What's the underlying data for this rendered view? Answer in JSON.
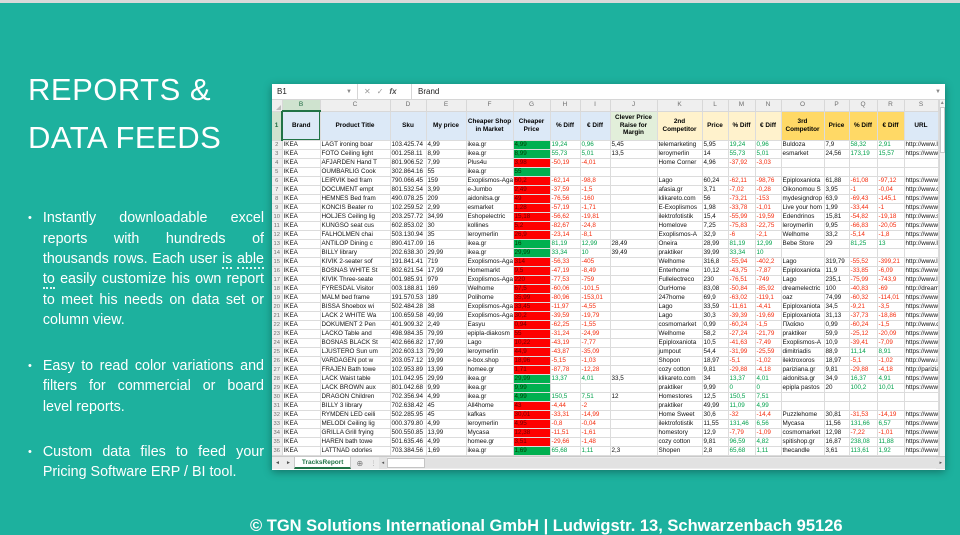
{
  "slide": {
    "title_line1": "REPORTS &",
    "title_line2": "DATA FEEDS",
    "bullets": [
      {
        "segments": [
          {
            "t": "Instantly downloadable excel reports with hundreds of thousands rows. Each user "
          },
          {
            "t": "is",
            "u": true
          },
          {
            "t": " "
          },
          {
            "t": "able",
            "u": true
          },
          {
            "t": " "
          },
          {
            "t": "to",
            "u": true
          },
          {
            "t": " easily customize his own report to meet his needs on data set or column view."
          }
        ]
      },
      {
        "segments": [
          {
            "t": "Easy to read color variations and filters for commercial or board level reports."
          }
        ]
      },
      {
        "segments": [
          {
            "t": "Custom data files to feed your Pricing Software ERP / BI tool."
          }
        ]
      }
    ],
    "footer": "© TGN Solutions International GmbH | Ludwigstr. 13, Schwarzenbach 95126",
    "colors": {
      "background": "#1DB19E",
      "top_strip": "#D9D9D9",
      "text": "#FFFFFF"
    }
  },
  "spreadsheet": {
    "name_box": "B1",
    "fx_label": "fx",
    "formula_bar": "Brand",
    "sheet_tab": "TracksReport",
    "selected_column": "B",
    "selected_row": "2",
    "column_letters": [
      "B",
      "C",
      "D",
      "E",
      "F",
      "G",
      "H",
      "I",
      "J",
      "K",
      "L",
      "M",
      "N",
      "O",
      "P",
      "Q",
      "R",
      "S"
    ],
    "headers": [
      "Brand",
      "Product Title",
      "Sku",
      "My price",
      "Cheaper Shop in Market",
      "Cheaper Price",
      "% Diff",
      "€ Diff",
      "Clever Price Raise for Margin",
      "2nd Competitor",
      "Price",
      "% Diff",
      "€ Diff",
      "3rd Competitor",
      "Price",
      "% Diff",
      "€ Diff",
      "URL"
    ],
    "header_groups": [
      "blue",
      "blue",
      "blue",
      "blue",
      "blue",
      "blue",
      "blue",
      "blue",
      "green",
      "yellow",
      "yellow",
      "yellow",
      "yellow",
      "gold",
      "gold",
      "gold",
      "gold",
      "blue"
    ],
    "colors": {
      "header_blue": "#DCE9F7",
      "header_green": "#E2EFDA",
      "header_yellow": "#FFF2CC",
      "header_gold": "#FFD966",
      "fill_green": "#00B050",
      "fill_red": "#FE0000",
      "positive_text": "#00A14B",
      "negative_text": "#F42A0B",
      "tab_accent": "#217346"
    },
    "rows": [
      {
        "n": 2,
        "gfill": "green",
        "cells": [
          "IKEA",
          "LAGT ironing boar",
          "103.425.74",
          "4,99",
          "ikea.gr",
          "4,99",
          "19,24",
          "0,96",
          "5,45",
          "telemarketing",
          "5,95",
          "19,24",
          "0,96",
          "Buldoza",
          "7,9",
          "58,32",
          "2,91",
          "http://www.IKa"
        ]
      },
      {
        "n": 3,
        "gfill": "green",
        "cells": [
          "IKEA",
          "FOTO Ceiling light",
          "001.258.11",
          "8,99",
          "ikea.gr",
          "8,99",
          "55,73",
          "5,01",
          "13,5",
          "leroymerlin",
          "14",
          "55,73",
          "5,01",
          "esmarket",
          "24,56",
          "173,19",
          "15,57",
          "https://www.ile"
        ]
      },
      {
        "n": 4,
        "gfill": "red",
        "cells": [
          "IKEA",
          "AFJARDEN Hand T",
          "801.906.52",
          "7,99",
          "Plus4u",
          "3,98",
          "-50,19",
          "-4,01",
          "",
          "Home Corner",
          "4,96",
          "-37,92",
          "-3,03",
          "",
          "",
          "",
          "",
          ""
        ]
      },
      {
        "n": 5,
        "gfill": "green",
        "cells": [
          "IKEA",
          "OUMBARLIG Cook",
          "302.864.16",
          "55",
          "ikea.gr",
          "55",
          "",
          "",
          "",
          "",
          "",
          "",
          "",
          "",
          "",
          "",
          "",
          ""
        ]
      },
      {
        "n": 6,
        "gfill": "red",
        "cells": [
          "IKEA",
          "LEIRVIK bed fram",
          "790.066.45",
          "159",
          "Exoplismos-Aga",
          "60,2",
          "-62,14",
          "-98,8",
          "",
          "Lago",
          "60,24",
          "-62,11",
          "-98,76",
          "Epiploxaniota",
          "61,88",
          "-61,08",
          "-97,12",
          "https://www.Sid"
        ]
      },
      {
        "n": 7,
        "gfill": "red",
        "cells": [
          "IKEA",
          "DOCUMENT empt",
          "801.532.54",
          "3,99",
          "e-Jumbo",
          "2,49",
          "-37,59",
          "-1,5",
          "",
          "afasia.gr",
          "3,71",
          "-7,02",
          "-0,28",
          "Oikonomou S",
          "3,95",
          "-1",
          "-0,04",
          "http://www.cTIk"
        ]
      },
      {
        "n": 8,
        "gfill": "red",
        "cells": [
          "IKEA",
          "HEMNES Bed fram",
          "490.078.25",
          "209",
          "aidonitsa.gr",
          "49",
          "-76,56",
          "-160",
          "",
          "klikareto.com",
          "56",
          "-73,21",
          "-153",
          "mydesigndrop",
          "63,9",
          "-69,43",
          "-145,1",
          "https://www.Ex"
        ]
      },
      {
        "n": 9,
        "gfill": "red",
        "cells": [
          "IKEA",
          "KONCIS Beater ro",
          "102.259.52",
          "2,99",
          "esmarket",
          "1,28",
          "-57,19",
          "-1,71",
          "",
          "E-Exoplismos",
          "1,98",
          "-33,78",
          "-1,01",
          "Live your hom",
          "1,99",
          "-33,44",
          "-1",
          "https://www.eic"
        ]
      },
      {
        "n": 10,
        "gfill": "red",
        "cells": [
          "IKEA",
          "HOLJES Ceiling lig",
          "203.257.72",
          "34,99",
          "Eshopelectric",
          "15,18",
          "-56,62",
          "-19,81",
          "",
          "ilektrofotistik",
          "15,4",
          "-55,99",
          "-19,59",
          "Edendrinos",
          "15,81",
          "-54,82",
          "-19,18",
          "http://www.sbo"
        ]
      },
      {
        "n": 11,
        "gfill": "red",
        "cells": [
          "IKEA",
          "KUNGSO seat cus",
          "602.853.02",
          "30",
          "kollines",
          "5,2",
          "-82,67",
          "-24,8",
          "",
          "Homelove",
          "7,25",
          "-75,83",
          "-22,75",
          "leroymerlin",
          "9,95",
          "-66,83",
          "-20,05",
          "https://www.Vo"
        ]
      },
      {
        "n": 12,
        "gfill": "red",
        "cells": [
          "IKEA",
          "FALHOLMEN chai",
          "503.130.94",
          "35",
          "leroymerlin",
          "26,9",
          "-23,14",
          "-8,1",
          "",
          "Exoplismos-A",
          "32,9",
          "-6",
          "-2,1",
          "Welhome",
          "33,2",
          "-5,14",
          "-1,8",
          "https://www.La"
        ]
      },
      {
        "n": 13,
        "gfill": "green",
        "cells": [
          "IKEA",
          "ANTILOP Dining c",
          "890.417.09",
          "16",
          "ikea.gr",
          "16",
          "81,19",
          "12,99",
          "28,49",
          "Oneira",
          "28,99",
          "81,19",
          "12,99",
          "Bebe Store",
          "29",
          "81,25",
          "13",
          "http://www.Iba"
        ]
      },
      {
        "n": 14,
        "gfill": "green",
        "cells": [
          "IKEA",
          "BILLY library",
          "202.638.30",
          "29,99",
          "ikea.gr",
          "29,99",
          "33,34",
          "10",
          "39,49",
          "praktiker",
          "39,99",
          "33,34",
          "10",
          "",
          "",
          "",
          "",
          ""
        ]
      },
      {
        "n": 15,
        "gfill": "red",
        "cells": [
          "IKEA",
          "KIVIK 2-seater sof",
          "191.841.41",
          "719",
          "Exoplismos-Aga",
          "314",
          "-56,33",
          "-405",
          "",
          "Welhome",
          "316,8",
          "-55,94",
          "-402,2",
          "Lago",
          "319,79",
          "-55,52",
          "-399,21",
          "http://www.lEp"
        ]
      },
      {
        "n": 16,
        "gfill": "red",
        "cells": [
          "IKEA",
          "BOSNAS WHITE St",
          "802.621.54",
          "17,99",
          "Homemarkt",
          "9,5",
          "-47,19",
          "-8,49",
          "",
          "Enterhome",
          "10,12",
          "-43,75",
          "-7,87",
          "Epiploxaniota",
          "11,9",
          "-33,85",
          "-6,09",
          "https://www.ep"
        ]
      },
      {
        "n": 17,
        "gfill": "red",
        "cells": [
          "IKEA",
          "KIVIK Three-seate",
          "001.985.91",
          "979",
          "Exoplismos-Aga",
          "220",
          "-77,53",
          "-759",
          "",
          "Fullelectreco",
          "230",
          "-76,51",
          "-749",
          "Lago",
          "235,1",
          "-75,99",
          "-743,9",
          "http://www.lEx"
        ]
      },
      {
        "n": 18,
        "gfill": "red",
        "cells": [
          "IKEA",
          "FYRESDAL Visitor",
          "003.188.81",
          "169",
          "Welhome",
          "67,5",
          "-60,06",
          "-101,5",
          "",
          "OurHome",
          "83,08",
          "-50,84",
          "-85,92",
          "dreamelectric",
          "100",
          "-40,83",
          "-69",
          "http://dreamHk"
        ]
      },
      {
        "n": 19,
        "gfill": "red",
        "cells": [
          "IKEA",
          "MALM bed frame",
          "191.570.53",
          "189",
          "Polihome",
          "35,99",
          "-80,96",
          "-153,01",
          "",
          "247home",
          "69,9",
          "-63,02",
          "-119,1",
          "oaz",
          "74,99",
          "-60,32",
          "-114,01",
          "https://www.Ele"
        ]
      },
      {
        "n": 20,
        "gfill": "red",
        "cells": [
          "IKEA",
          "BISSA Shoebox wi",
          "502.484.28",
          "38",
          "Exoplismos-Aga",
          "33,45",
          "-11,97",
          "-4,55",
          "",
          "Lago",
          "33,59",
          "-11,61",
          "-4,41",
          "Epiploxaniota",
          "34,5",
          "-9,21",
          "-3,5",
          "https://www.ep"
        ]
      },
      {
        "n": 21,
        "gfill": "red",
        "cells": [
          "IKEA",
          "LACK 2 WHITE Wa",
          "100.659.58",
          "49,99",
          "Exoplismos-Aga",
          "30,2",
          "-39,59",
          "-19,79",
          "",
          "Lago",
          "30,3",
          "-39,39",
          "-19,69",
          "Epiploxaniota",
          "31,13",
          "-37,73",
          "-18,86",
          "https://www.Ho"
        ]
      },
      {
        "n": 22,
        "gfill": "red",
        "cells": [
          "IKEA",
          "DOKUMENT 2 Pen",
          "401.909.32",
          "2,49",
          "Easyu",
          "0,94",
          "-62,25",
          "-1,55",
          "",
          "cosmomarket",
          "0,99",
          "-60,24",
          "-1,5",
          "Πλαίσιο",
          "0,99",
          "-60,24",
          "-1,5",
          "http://www.qBc"
        ]
      },
      {
        "n": 23,
        "gfill": "red",
        "cells": [
          "IKEA",
          "LACKO Table and",
          "498.984.35",
          "79,99",
          "epipla-diakosm",
          "55",
          "-31,24",
          "-24,99",
          "",
          "Welhome",
          "58,2",
          "-27,24",
          "-21,79",
          "praktiker",
          "59,9",
          "-25,12",
          "-20,09",
          "https://www.pr"
        ]
      },
      {
        "n": 24,
        "gfill": "red",
        "cells": [
          "IKEA",
          "BOSNAS BLACK St",
          "402.666.82",
          "17,99",
          "Lago",
          "10,22",
          "-43,19",
          "-7,77",
          "",
          "Epiploxaniota",
          "10,5",
          "-41,63",
          "-7,49",
          "Exoplismos-A",
          "10,9",
          "-39,41",
          "-7,09",
          "https://www.W"
        ]
      },
      {
        "n": 25,
        "gfill": "red",
        "cells": [
          "IKEA",
          "LJUSTERO Sun um",
          "202.603.13",
          "79,99",
          "leroymerlin",
          "44,9",
          "-43,87",
          "-35,09",
          "",
          "jumpout",
          "54,4",
          "-31,99",
          "-25,59",
          "dimitriadis",
          "88,9",
          "11,14",
          "8,91",
          "https://www.ou"
        ]
      },
      {
        "n": 26,
        "gfill": "red",
        "cells": [
          "IKEA",
          "VARDAGEN pot w",
          "203.057.12",
          "19,99",
          "e-box.shop",
          "18,96",
          "-5,15",
          "-1,03",
          "",
          "Shopon",
          "18,97",
          "-5,1",
          "-1,02",
          "ilektroxoros",
          "18,97",
          "-5,1",
          "-1,02",
          "http://www.iba"
        ]
      },
      {
        "n": 27,
        "gfill": "red",
        "cells": [
          "IKEA",
          "FRAJEN Bath towe",
          "102.953.89",
          "13,99",
          "homee.gr",
          "1,71",
          "-87,78",
          "-12,28",
          "",
          "cozy cotton",
          "9,81",
          "-29,88",
          "-4,18",
          "pariziana.gr",
          "9,81",
          "-29,88",
          "-4,18",
          "http://pariziaZe"
        ]
      },
      {
        "n": 28,
        "gfill": "green",
        "cells": [
          "IKEA",
          "LACK Waist table",
          "101.042.95",
          "29,99",
          "ikea.gr",
          "29,99",
          "13,37",
          "4,01",
          "33,5",
          "klikareto.com",
          "34",
          "13,37",
          "4,01",
          "aidonitsa.gr",
          "34,9",
          "16,37",
          "4,91",
          "https://www.my"
        ]
      },
      {
        "n": 29,
        "gfill": "green",
        "cells": [
          "IKEA",
          "LACK BROWN aux",
          "801.042.68",
          "9,99",
          "ikea.gr",
          "9,99",
          "",
          "",
          "",
          "praktiker",
          "9,99",
          "0",
          "0",
          "epipla pastos",
          "20",
          "100,2",
          "10,01",
          "https://www.ho"
        ]
      },
      {
        "n": 30,
        "gfill": "green",
        "cells": [
          "IKEA",
          "DRAGON Children",
          "702.356.94",
          "4,99",
          "ikea.gr",
          "4,99",
          "150,5",
          "7,51",
          "12",
          "Homestores",
          "12,5",
          "150,5",
          "7,51",
          "",
          "",
          "",
          "",
          ""
        ]
      },
      {
        "n": 31,
        "gfill": "red",
        "cells": [
          "IKEA",
          "BILLY 3 library",
          "702.638.42",
          "45",
          "All4home",
          "43",
          "-4,44",
          "-2",
          "",
          "praktiker",
          "49,99",
          "11,09",
          "4,99",
          "",
          "",
          "",
          "",
          ""
        ]
      },
      {
        "n": 32,
        "gfill": "red",
        "cells": [
          "IKEA",
          "RYMDEN LED ceili",
          "502.285.95",
          "45",
          "kafkas",
          "30,01",
          "-33,31",
          "-14,99",
          "",
          "Home Sweet",
          "30,6",
          "-32",
          "-14,4",
          "Puzzlehome",
          "30,81",
          "-31,53",
          "-14,19",
          "https://www.ast"
        ]
      },
      {
        "n": 33,
        "gfill": "red",
        "cells": [
          "IKEA",
          "MELODI Ceiling lig",
          "000.379.80",
          "4,99",
          "leroymerlin",
          "4,95",
          "-0,8",
          "-0,04",
          "",
          "ilektrofotistik",
          "11,55",
          "131,46",
          "6,56",
          "Mycasa",
          "11,56",
          "131,66",
          "6,57",
          "https://www.Le"
        ]
      },
      {
        "n": 34,
        "gfill": "red",
        "cells": [
          "IKEA",
          "GRILLA Grill frying",
          "500.550.85",
          "13,99",
          "Mycasa",
          "12,38",
          "-11,51",
          "-1,61",
          "",
          "homestory",
          "12,9",
          "-7,79",
          "-1,09",
          "cosmomarket",
          "12,98",
          "-7,22",
          "-1,01",
          "https://www.pa"
        ]
      },
      {
        "n": 35,
        "gfill": "red",
        "cells": [
          "IKEA",
          "HAREN bath towe",
          "501.635.46",
          "4,99",
          "homee.gr",
          "3,51",
          "-29,66",
          "-1,48",
          "",
          "cozy cotton",
          "9,81",
          "96,59",
          "4,82",
          "spitishop.gr",
          "16,87",
          "238,08",
          "11,88",
          "https://www.Mh"
        ]
      },
      {
        "n": 36,
        "gfill": "green",
        "cells": [
          "IKEA",
          "LATTNAD odorles",
          "703.384.56",
          "1,69",
          "ikea.gr",
          "1,69",
          "65,68",
          "1,11",
          "2,3",
          "Shopen",
          "2,8",
          "65,68",
          "1,11",
          "thecandle",
          "3,61",
          "113,61",
          "1,92",
          "https://www.Ho"
        ]
      }
    ]
  }
}
